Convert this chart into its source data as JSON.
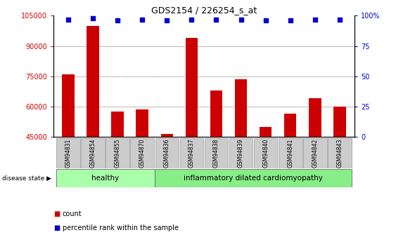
{
  "title": "GDS2154 / 226254_s_at",
  "samples": [
    "GSM94831",
    "GSM94854",
    "GSM94855",
    "GSM94870",
    "GSM94836",
    "GSM94837",
    "GSM94838",
    "GSM94839",
    "GSM94840",
    "GSM94841",
    "GSM94842",
    "GSM94843"
  ],
  "counts": [
    76000,
    100000,
    57500,
    58500,
    46500,
    94000,
    68000,
    73500,
    50000,
    56500,
    64000,
    60000
  ],
  "percentiles": [
    97,
    98,
    96,
    97,
    96,
    97,
    97,
    97,
    96,
    96,
    97,
    97
  ],
  "ylim_left": [
    45000,
    105000
  ],
  "ylim_right": [
    0,
    100
  ],
  "yticks_left": [
    45000,
    60000,
    75000,
    90000,
    105000
  ],
  "yticks_right": [
    0,
    25,
    50,
    75,
    100
  ],
  "bar_color": "#cc0000",
  "dot_color": "#0000cc",
  "healthy_count": 4,
  "disease_count": 8,
  "healthy_label": "healthy",
  "disease_label": "inflammatory dilated cardiomyopathy",
  "disease_state_label": "disease state",
  "legend_count": "count",
  "legend_percentile": "percentile rank within the sample",
  "healthy_bg": "#aaffaa",
  "disease_bg": "#88ee88",
  "tick_label_bg": "#cccccc",
  "bar_width": 0.5
}
